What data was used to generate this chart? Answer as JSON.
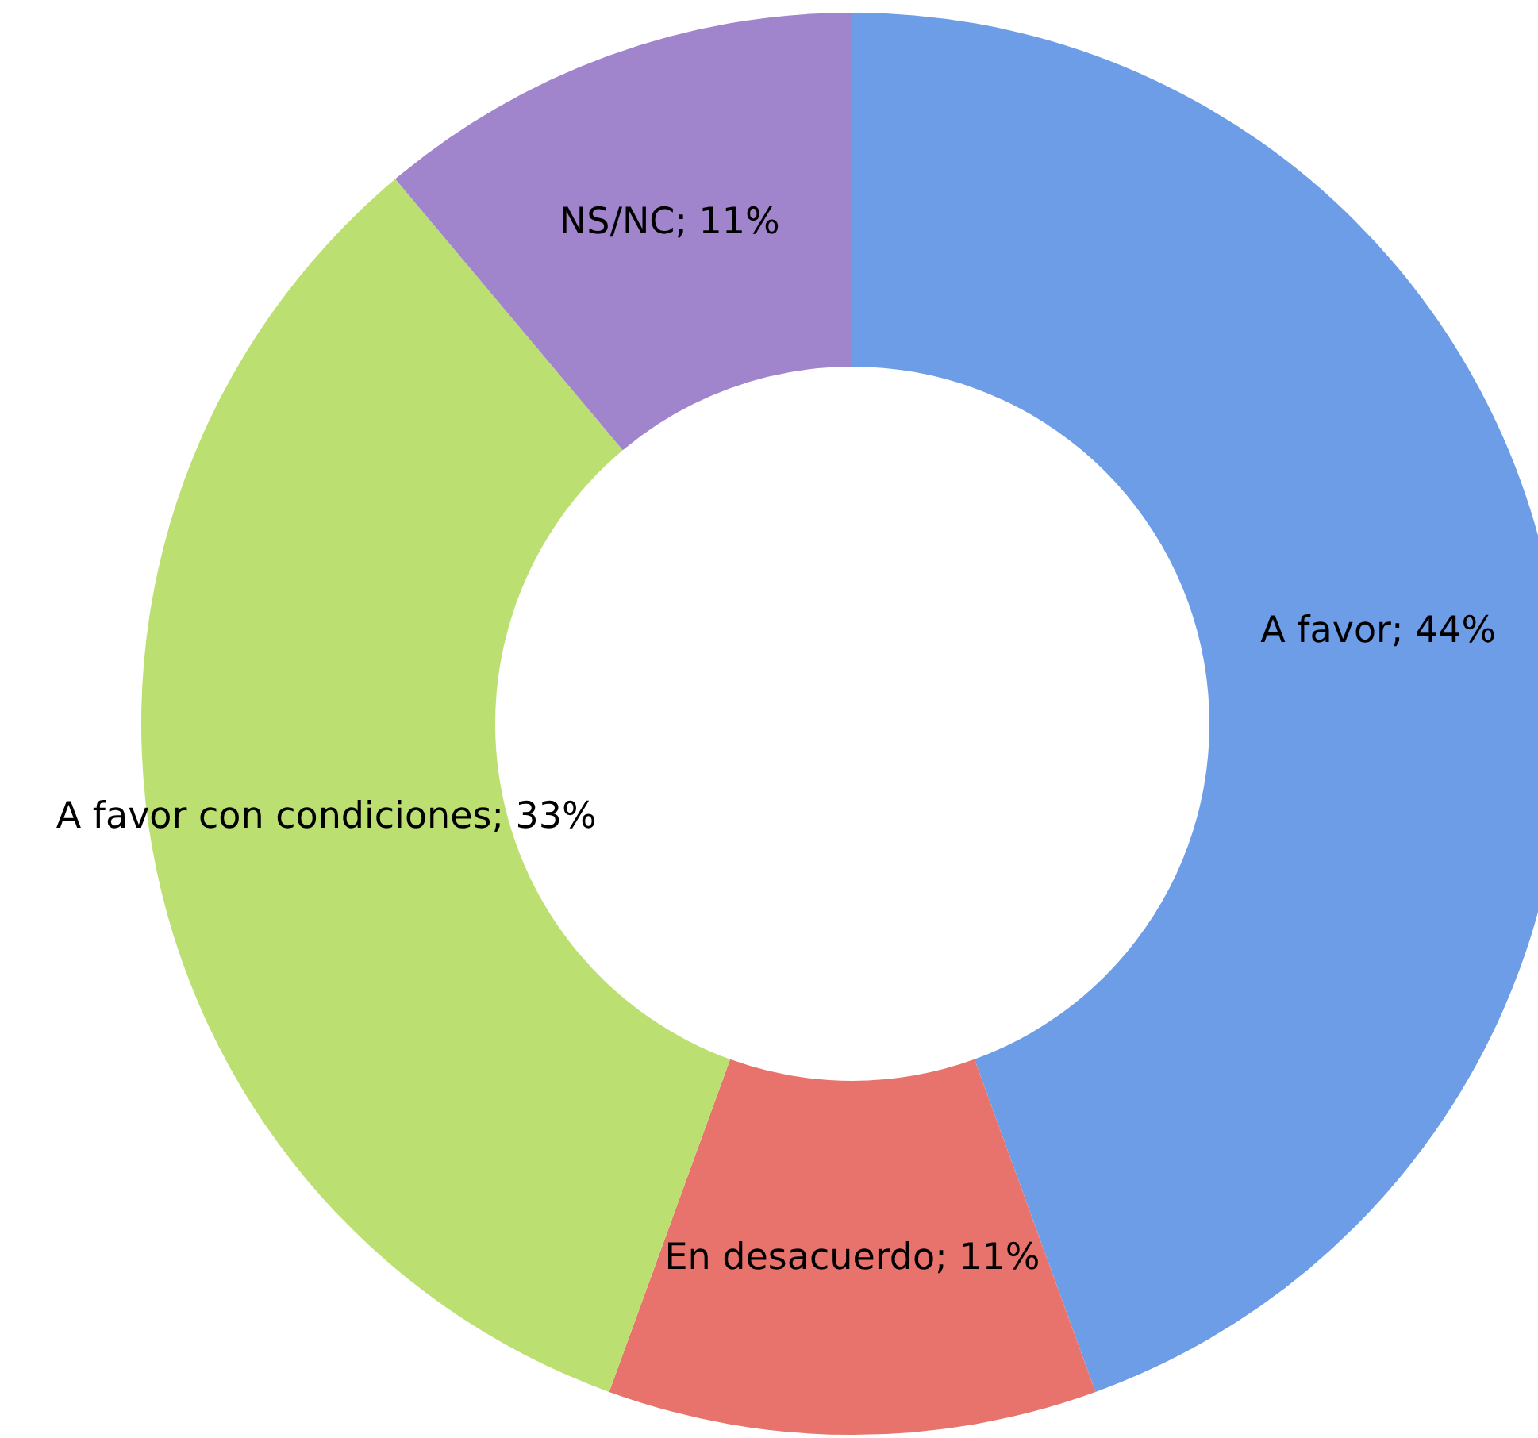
{
  "chart_data": {
    "type": "donut",
    "categories": [
      "A favor",
      "En desacuerdo",
      "A favor con condiciones",
      "NS/NC"
    ],
    "values": [
      44,
      11,
      33,
      11
    ],
    "colors": [
      "#6d9de6",
      "#e8736c",
      "#bcdf72",
      "#a084cc"
    ],
    "value_labels": [
      "44%",
      "11%",
      "33%",
      "11%"
    ]
  }
}
